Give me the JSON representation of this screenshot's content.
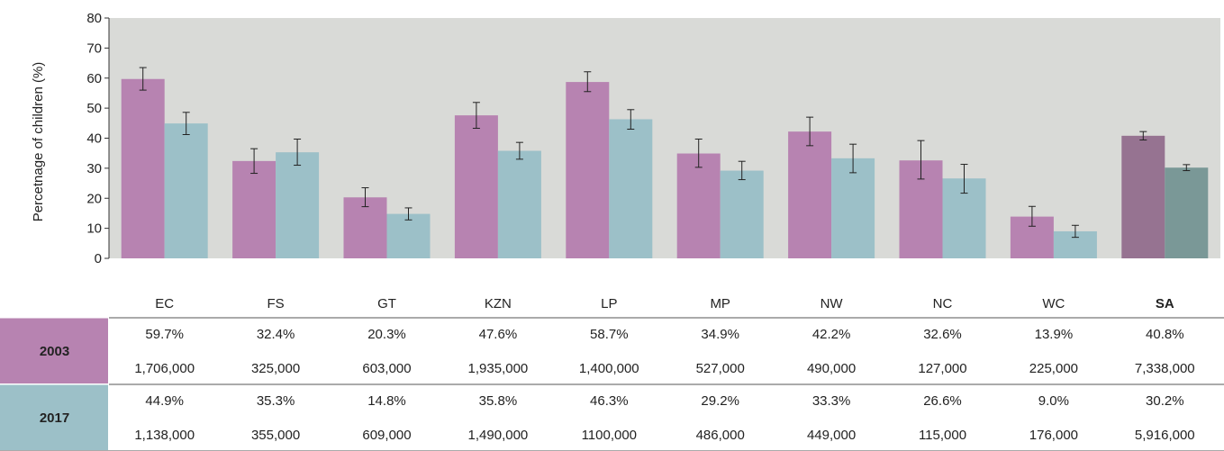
{
  "chart_data": {
    "type": "bar",
    "ylabel": "Percetnage of children (%)",
    "ylim": [
      0,
      80
    ],
    "yticks": [
      0,
      10,
      20,
      30,
      40,
      50,
      60,
      70,
      80
    ],
    "grid": false,
    "categories": [
      "EC",
      "FS",
      "GT",
      "KZN",
      "LP",
      "MP",
      "NW",
      "NC",
      "WC",
      "SA"
    ],
    "highlight_category": "SA",
    "series": [
      {
        "name": "2003",
        "color": "#b783b1",
        "highlight_color": "#967391",
        "values": [
          59.7,
          32.4,
          20.3,
          47.6,
          58.7,
          34.9,
          42.2,
          32.6,
          13.9,
          40.8
        ],
        "error_low": [
          56.0,
          28.3,
          17.2,
          43.3,
          55.5,
          30.3,
          37.5,
          26.4,
          10.7,
          39.4
        ],
        "error_high": [
          63.5,
          36.5,
          23.5,
          51.9,
          62.1,
          39.7,
          47.0,
          39.2,
          17.3,
          42.2
        ],
        "percent_labels": [
          "59.7%",
          "32.4%",
          "20.3%",
          "47.6%",
          "58.7%",
          "34.9%",
          "42.2%",
          "32.6%",
          "13.9%",
          "40.8%"
        ],
        "counts": [
          "1,706,000",
          "325,000",
          "603,000",
          "1,935,000",
          "1,400,000",
          "527,000",
          "490,000",
          "127,000",
          "225,000",
          "7,338,000"
        ]
      },
      {
        "name": "2017",
        "color": "#9cc0c8",
        "highlight_color": "#7a9897",
        "values": [
          44.9,
          35.3,
          14.8,
          35.8,
          46.3,
          29.2,
          33.3,
          26.6,
          9.0,
          30.2
        ],
        "error_low": [
          41.2,
          31.0,
          12.8,
          33.0,
          43.0,
          26.2,
          28.5,
          21.7,
          7.0,
          29.2
        ],
        "error_high": [
          48.6,
          39.7,
          16.8,
          38.6,
          49.5,
          32.3,
          38.0,
          31.3,
          11.0,
          31.2
        ],
        "percent_labels": [
          "44.9%",
          "35.3%",
          "14.8%",
          "35.8%",
          "46.3%",
          "29.2%",
          "33.3%",
          "26.6%",
          "9.0%",
          "30.2%"
        ],
        "counts": [
          "1,138,000",
          "355,000",
          "609,000",
          "1,490,000",
          "1100,000",
          "486,000",
          "449,000",
          "115,000",
          "176,000",
          "5,916,000"
        ]
      }
    ],
    "plot_background": "#d9dad7"
  }
}
